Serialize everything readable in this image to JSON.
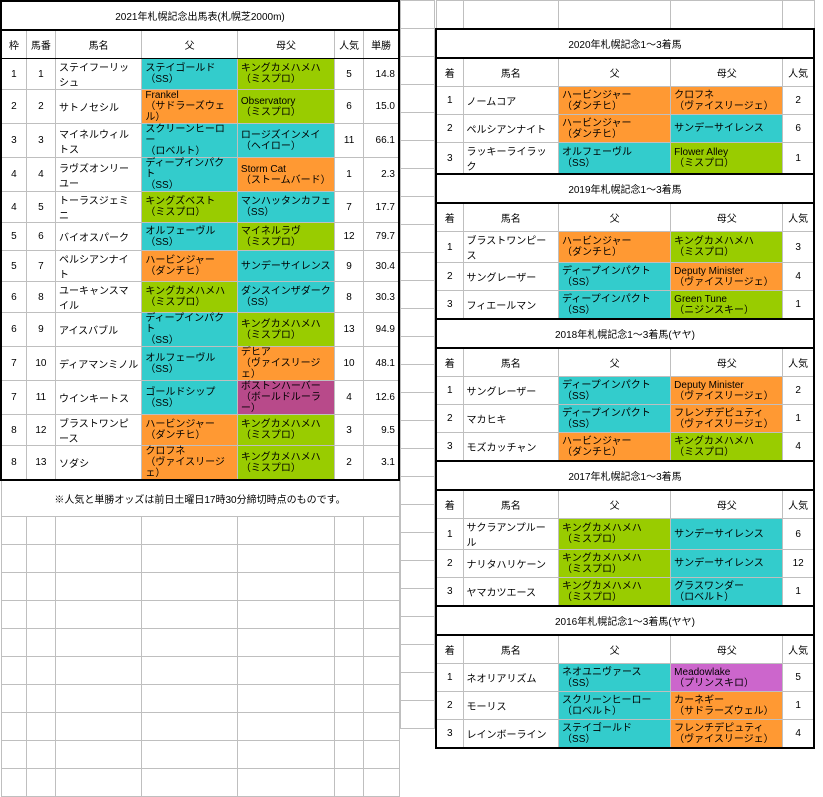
{
  "colors": {
    "blue": "#33cccc",
    "orange": "#ff9933",
    "green": "#99cc00",
    "purple": "#cc66cc",
    "magenta": "#b84a8a"
  },
  "left": {
    "title": "2021年札幌記念出馬表(札幌芝2000m)",
    "headers": [
      "枠",
      "馬番",
      "馬名",
      "父",
      "母父",
      "人気",
      "単勝"
    ],
    "rows": [
      {
        "waku": "1",
        "num": "1",
        "name": "ステイフーリッシュ",
        "sire": {
          "l1": "ステイゴールド",
          "l2": "（SS）",
          "c": "blue"
        },
        "msire": {
          "l1": "キングカメハメハ",
          "l2": "（ミスプロ）",
          "c": "green"
        },
        "pop": "5",
        "odds": "14.8"
      },
      {
        "waku": "2",
        "num": "2",
        "name": "サトノセシル",
        "sire": {
          "l1": "Frankel",
          "l2": "（サドラーズウェル）",
          "c": "orange"
        },
        "msire": {
          "l1": "Observatory",
          "l2": "（ミスプロ）",
          "c": "green"
        },
        "pop": "6",
        "odds": "15.0"
      },
      {
        "waku": "3",
        "num": "3",
        "name": "マイネルウィルトス",
        "sire": {
          "l1": "スクリーンヒーロー",
          "l2": "（ロベルト）",
          "c": "blue"
        },
        "msire": {
          "l1": "ロージズインメイ",
          "l2": "（ヘイロー）",
          "c": "blue"
        },
        "pop": "11",
        "odds": "66.1"
      },
      {
        "waku": "4",
        "num": "4",
        "name": "ラヴズオンリーユー",
        "sire": {
          "l1": "ディープインパクト",
          "l2": "（SS）",
          "c": "blue"
        },
        "msire": {
          "l1": "Storm Cat",
          "l2": "（ストームバード）",
          "c": "orange"
        },
        "pop": "1",
        "odds": "2.3"
      },
      {
        "waku": "4",
        "num": "5",
        "name": "トーラスジェミニ",
        "sire": {
          "l1": "キングズベスト",
          "l2": "（ミスプロ）",
          "c": "green"
        },
        "msire": {
          "l1": "マンハッタンカフェ",
          "l2": "（SS）",
          "c": "blue"
        },
        "pop": "7",
        "odds": "17.7"
      },
      {
        "waku": "5",
        "num": "6",
        "name": "バイオスパーク",
        "sire": {
          "l1": "オルフェーヴル",
          "l2": "（SS）",
          "c": "blue"
        },
        "msire": {
          "l1": "マイネルラヴ",
          "l2": "（ミスプロ）",
          "c": "green"
        },
        "pop": "12",
        "odds": "79.7"
      },
      {
        "waku": "5",
        "num": "7",
        "name": "ペルシアンナイト",
        "sire": {
          "l1": "ハービンジャー",
          "l2": "（ダンチヒ）",
          "c": "orange"
        },
        "msire": {
          "l1": "サンデーサイレンス",
          "l2": "",
          "c": "blue"
        },
        "pop": "9",
        "odds": "30.4"
      },
      {
        "waku": "6",
        "num": "8",
        "name": "ユーキャンスマイル",
        "sire": {
          "l1": "キングカメハメハ",
          "l2": "（ミスプロ）",
          "c": "green"
        },
        "msire": {
          "l1": "ダンスインザダーク",
          "l2": "（SS）",
          "c": "blue"
        },
        "pop": "8",
        "odds": "30.3"
      },
      {
        "waku": "6",
        "num": "9",
        "name": "アイスバブル",
        "sire": {
          "l1": "ディープインパクト",
          "l2": "（SS）",
          "c": "blue"
        },
        "msire": {
          "l1": "キングカメハメハ",
          "l2": "（ミスプロ）",
          "c": "green"
        },
        "pop": "13",
        "odds": "94.9"
      },
      {
        "waku": "7",
        "num": "10",
        "name": "ディアマンミノル",
        "sire": {
          "l1": "オルフェーヴル",
          "l2": "（SS）",
          "c": "blue"
        },
        "msire": {
          "l1": "デヒア",
          "l2": "（ヴァイスリージェ）",
          "c": "orange"
        },
        "pop": "10",
        "odds": "48.1"
      },
      {
        "waku": "7",
        "num": "11",
        "name": "ウインキートス",
        "sire": {
          "l1": "ゴールドシップ",
          "l2": "（SS）",
          "c": "blue"
        },
        "msire": {
          "l1": "ボストンハーバー",
          "l2": "（ボールドルーラー）",
          "c": "magenta"
        },
        "pop": "4",
        "odds": "12.6"
      },
      {
        "waku": "8",
        "num": "12",
        "name": "ブラストワンピース",
        "sire": {
          "l1": "ハービンジャー",
          "l2": "（ダンチヒ）",
          "c": "orange"
        },
        "msire": {
          "l1": "キングカメハメハ",
          "l2": "（ミスプロ）",
          "c": "green"
        },
        "pop": "3",
        "odds": "9.5"
      },
      {
        "waku": "8",
        "num": "13",
        "name": "ソダシ",
        "sire": {
          "l1": "クロフネ",
          "l2": "（ヴァイスリージェ）",
          "c": "orange"
        },
        "msire": {
          "l1": "キングカメハメハ",
          "l2": "（ミスプロ）",
          "c": "green"
        },
        "pop": "2",
        "odds": "3.1"
      }
    ],
    "note": "※人気と単勝オッズは前日土曜日17時30分締切時点のものです。"
  },
  "right": [
    {
      "title": "2020年札幌記念1～3着馬",
      "headers": [
        "着",
        "馬名",
        "父",
        "母父",
        "人気"
      ],
      "rows": [
        {
          "pl": "1",
          "name": "ノームコア",
          "sire": {
            "l1": "ハービンジャー",
            "l2": "（ダンチヒ）",
            "c": "orange"
          },
          "msire": {
            "l1": "クロフネ",
            "l2": "（ヴァイスリージェ）",
            "c": "orange"
          },
          "pop": "2"
        },
        {
          "pl": "2",
          "name": "ペルシアンナイト",
          "sire": {
            "l1": "ハービンジャー",
            "l2": "（ダンチヒ）",
            "c": "orange"
          },
          "msire": {
            "l1": "サンデーサイレンス",
            "l2": "",
            "c": "blue"
          },
          "pop": "6"
        },
        {
          "pl": "3",
          "name": "ラッキーライラック",
          "sire": {
            "l1": "オルフェーヴル",
            "l2": "（SS）",
            "c": "blue"
          },
          "msire": {
            "l1": "Flower Alley",
            "l2": "（ミスプロ）",
            "c": "green"
          },
          "pop": "1"
        }
      ]
    },
    {
      "title": "2019年札幌記念1～3着馬",
      "headers": [
        "着",
        "馬名",
        "父",
        "母父",
        "人気"
      ],
      "rows": [
        {
          "pl": "1",
          "name": "ブラストワンピース",
          "sire": {
            "l1": "ハービンジャー",
            "l2": "（ダンチヒ）",
            "c": "orange"
          },
          "msire": {
            "l1": "キングカメハメハ",
            "l2": "（ミスプロ）",
            "c": "green"
          },
          "pop": "3"
        },
        {
          "pl": "2",
          "name": "サングレーザー",
          "sire": {
            "l1": "ディープインパクト",
            "l2": "（SS）",
            "c": "blue"
          },
          "msire": {
            "l1": "Deputy Minister",
            "l2": "（ヴァイスリージェ）",
            "c": "orange"
          },
          "pop": "4"
        },
        {
          "pl": "3",
          "name": "フィエールマン",
          "sire": {
            "l1": "ディープインパクト",
            "l2": "（SS）",
            "c": "blue"
          },
          "msire": {
            "l1": "Green Tune",
            "l2": "（ニジンスキー）",
            "c": "green"
          },
          "pop": "1"
        }
      ]
    },
    {
      "title": "2018年札幌記念1～3着馬(ヤヤ)",
      "headers": [
        "着",
        "馬名",
        "父",
        "母父",
        "人気"
      ],
      "rows": [
        {
          "pl": "1",
          "name": "サングレーザー",
          "sire": {
            "l1": "ディープインパクト",
            "l2": "（SS）",
            "c": "blue"
          },
          "msire": {
            "l1": "Deputy Minister",
            "l2": "（ヴァイスリージェ）",
            "c": "orange"
          },
          "pop": "2"
        },
        {
          "pl": "2",
          "name": "マカヒキ",
          "sire": {
            "l1": "ディープインパクト",
            "l2": "（SS）",
            "c": "blue"
          },
          "msire": {
            "l1": "フレンチデピュティ",
            "l2": "（ヴァイスリージェ）",
            "c": "orange"
          },
          "pop": "1"
        },
        {
          "pl": "3",
          "name": "モズカッチャン",
          "sire": {
            "l1": "ハービンジャー",
            "l2": "（ダンチヒ）",
            "c": "orange"
          },
          "msire": {
            "l1": "キングカメハメハ",
            "l2": "（ミスプロ）",
            "c": "green"
          },
          "pop": "4"
        }
      ]
    },
    {
      "title": "2017年札幌記念1～3着馬",
      "headers": [
        "着",
        "馬名",
        "父",
        "母父",
        "人気"
      ],
      "rows": [
        {
          "pl": "1",
          "name": "サクラアンプルール",
          "sire": {
            "l1": "キングカメハメハ",
            "l2": "（ミスプロ）",
            "c": "green"
          },
          "msire": {
            "l1": "サンデーサイレンス",
            "l2": "",
            "c": "blue"
          },
          "pop": "6"
        },
        {
          "pl": "2",
          "name": "ナリタハリケーン",
          "sire": {
            "l1": "キングカメハメハ",
            "l2": "（ミスプロ）",
            "c": "green"
          },
          "msire": {
            "l1": "サンデーサイレンス",
            "l2": "",
            "c": "blue"
          },
          "pop": "12"
        },
        {
          "pl": "3",
          "name": "ヤマカツエース",
          "sire": {
            "l1": "キングカメハメハ",
            "l2": "（ミスプロ）",
            "c": "green"
          },
          "msire": {
            "l1": "グラスワンダー",
            "l2": "（ロベルト）",
            "c": "blue"
          },
          "pop": "1"
        }
      ]
    },
    {
      "title": "2016年札幌記念1～3着馬(ヤヤ)",
      "headers": [
        "着",
        "馬名",
        "父",
        "母父",
        "人気"
      ],
      "rows": [
        {
          "pl": "1",
          "name": "ネオリアリズム",
          "sire": {
            "l1": "ネオユニヴァース",
            "l2": "（SS）",
            "c": "blue"
          },
          "msire": {
            "l1": "Meadowlake",
            "l2": "（プリンスキロ）",
            "c": "purple"
          },
          "pop": "5"
        },
        {
          "pl": "2",
          "name": "モーリス",
          "sire": {
            "l1": "スクリーンヒーロー",
            "l2": "（ロベルト）",
            "c": "blue"
          },
          "msire": {
            "l1": "カーネギー",
            "l2": "（サドラーズウェル）",
            "c": "orange"
          },
          "pop": "1"
        },
        {
          "pl": "3",
          "name": "レインボーライン",
          "sire": {
            "l1": "ステイゴールド",
            "l2": "（SS）",
            "c": "blue"
          },
          "msire": {
            "l1": "フレンチデピュティ",
            "l2": "（ヴァイスリージェ）",
            "c": "orange"
          },
          "pop": "4"
        }
      ]
    }
  ]
}
